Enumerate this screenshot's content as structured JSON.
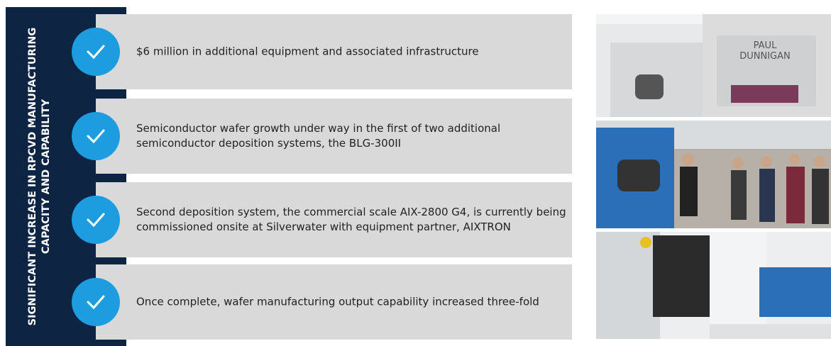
{
  "sidebar": {
    "lines": [
      "SIGNIFICANT INCREASE IN RPCVD MANUFACTURING",
      "CAPACITY AND CAPABILITY"
    ]
  },
  "items": [
    {
      "lines": [
        "$6 million in additional equipment and associated infrastructure"
      ]
    },
    {
      "lines": [
        "Semiconductor wafer growth under way in the first of two additional",
        "semiconductor deposition systems, the BLG-300II"
      ]
    },
    {
      "lines": [
        "Second deposition system, the commercial scale AIX-2800 G4, is currently being",
        "commissioned onsite at Silverwater with equipment partner, AIXTRON"
      ]
    },
    {
      "lines": [
        "Once complete, wafer manufacturing output capability increased three-fold"
      ]
    }
  ],
  "photos": {
    "sign": [
      "PAUL",
      "DUNNIGAN"
    ]
  }
}
